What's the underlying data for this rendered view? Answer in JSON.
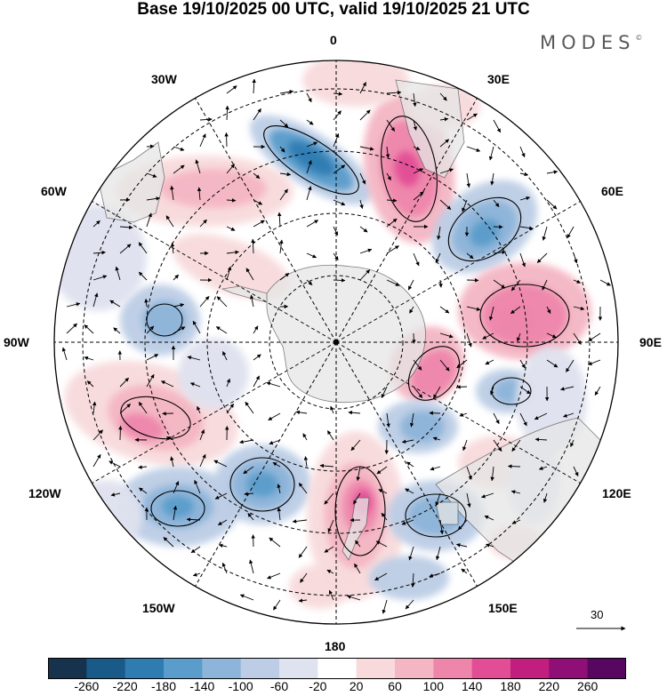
{
  "title": "Base 19/10/2025 00 UTC, valid 19/10/2025 21 UTC",
  "brand": "MODES",
  "brand_mark": "©",
  "map": {
    "projection": "south-polar-stereographic",
    "longitude_labels": [
      "0",
      "30E",
      "60E",
      "90E",
      "120E",
      "150E",
      "180",
      "150W",
      "120W",
      "90W",
      "60W",
      "30W"
    ],
    "vector_reference_label": "30",
    "colors": {
      "land": "#e6e6e6",
      "ocean": "#ffffff",
      "grid": "#000000"
    }
  },
  "colorbar": {
    "colors": [
      "#17324d",
      "#1a5a88",
      "#2e7cb2",
      "#5a9ccb",
      "#8db4d9",
      "#bccde5",
      "#dfe2ef",
      "#ffffff",
      "#f8dadc",
      "#f4b6c3",
      "#ee86ab",
      "#e24d95",
      "#c21e80",
      "#8f0f77",
      "#57075f"
    ],
    "tick_labels": [
      "-260",
      "-220",
      "-180",
      "-140",
      "-100",
      "-60",
      "-20",
      "20",
      "60",
      "100",
      "140",
      "180",
      "220",
      "260"
    ]
  }
}
